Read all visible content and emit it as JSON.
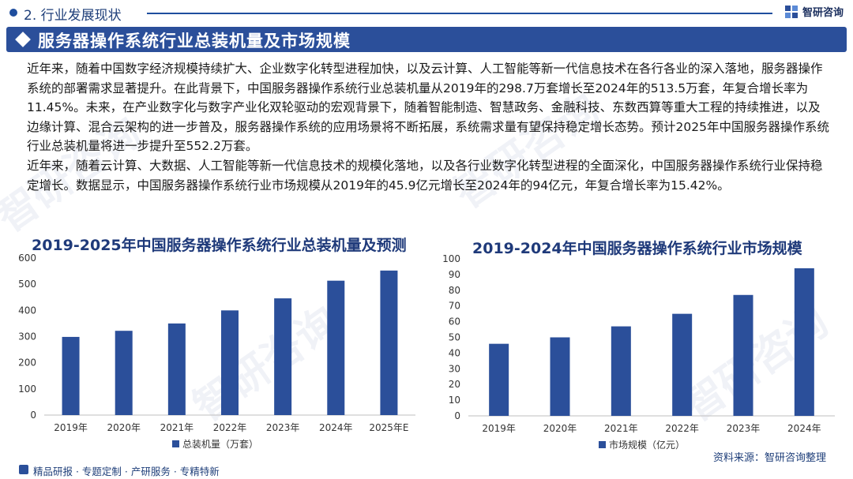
{
  "header": {
    "section": "2. 行业发展现状",
    "brand": "智研咨询"
  },
  "banner": {
    "title": "服务器操作系统行业总装机量及市场规模"
  },
  "paragraph": [
    "近年来，随着中国数字经济规模持续扩大、企业数字化转型进程加快，以及云计算、人工智能等新一代信息技术在各行各业的深入落地，服务器操作系统的部署需求显著提升。在此背景下，中国服务器操作系统行业总装机量从2019年的298.7万套增长至2024年的513.5万套，年复合增长率为11.45%。未来，在产业数字化与数字产业化双轮驱动的宏观背景下，随着智能制造、智慧政务、金融科技、东数西算等重大工程的持续推进，以及边缘计算、混合云架构的进一步普及，服务器操作系统的应用场景将不断拓展，系统需求量有望保持稳定增长态势。预计2025年中国服务器操作系统行业总装机量将进一步提升至552.2万套。",
    "近年来，随着云计算、大数据、人工智能等新一代信息技术的规模化落地，以及各行业数字化转型进程的全面深化，中国服务器操作系统行业保持稳定增长。数据显示，中国服务器操作系统行业市场规模从2019年的45.9亿元增长至2024年的94亿元，年复合增长率为15.42%。"
  ],
  "watermark": "智研咨询",
  "chart_data": [
    {
      "type": "bar",
      "title": "2019-2025年中国服务器操作系统行业总装机量及预测",
      "categories": [
        "2019年",
        "2020年",
        "2021年",
        "2022年",
        "2023年",
        "2024年",
        "2025年E"
      ],
      "series": [
        {
          "name": "总装机量（万套）",
          "values": [
            298.7,
            322,
            350,
            400,
            446,
            513.5,
            552.2
          ]
        }
      ],
      "ylim": [
        0,
        600
      ],
      "yticks": [
        0,
        100,
        200,
        300,
        400,
        500,
        600
      ],
      "grid": false,
      "legend": "bottom",
      "color": "#2b4f9a"
    },
    {
      "type": "bar",
      "title": "2019-2024年中国服务器操作系统行业市场规模",
      "categories": [
        "2019年",
        "2020年",
        "2021年",
        "2022年",
        "2023年",
        "2024年"
      ],
      "series": [
        {
          "name": "市场规模（亿元）",
          "values": [
            45.9,
            50,
            57,
            65,
            77,
            94
          ]
        }
      ],
      "ylim": [
        0,
        100
      ],
      "yticks": [
        0,
        10,
        20,
        30,
        40,
        50,
        60,
        70,
        80,
        90,
        100
      ],
      "grid": false,
      "legend": "bottom",
      "color": "#2b4f9a"
    }
  ],
  "footer": {
    "slogan": "精品研报 · 专题定制 · 产研服务 · 专精特新",
    "source": "资料来源：智研咨询整理"
  }
}
